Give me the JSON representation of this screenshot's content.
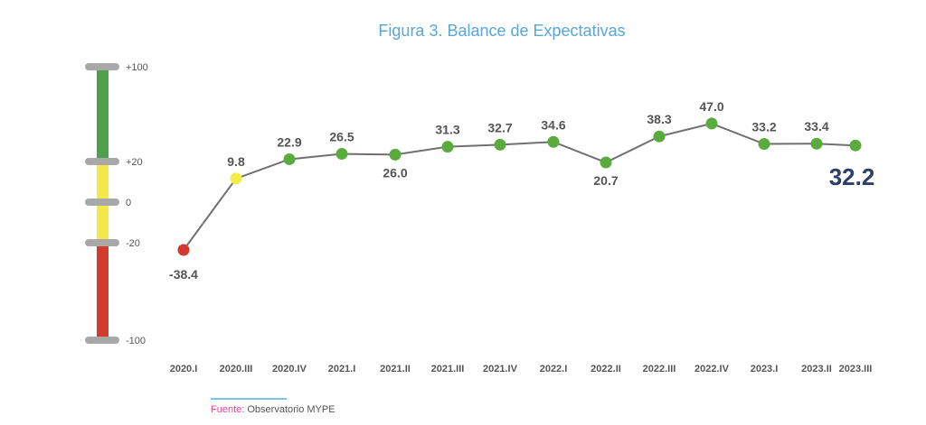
{
  "chart_data": {
    "type": "line",
    "title": "Figura 3. Balance de Expectativas",
    "xlabel": "",
    "ylabel": "",
    "categories": [
      "2020.I",
      "2020.III",
      "2020.IV",
      "2021.I",
      "2021.II",
      "2021.III",
      "2021.IV",
      "2022.I",
      "2022.II",
      "2022.III",
      "2022.IV",
      "2023.I",
      "2023.II",
      "2023.III"
    ],
    "values": [
      -38.4,
      9.8,
      22.9,
      26.5,
      26.0,
      31.3,
      32.7,
      34.6,
      20.7,
      38.3,
      47.0,
      33.2,
      33.4,
      32.2
    ],
    "labels": [
      "-38.4",
      "9.8",
      "22.9",
      "26.5",
      "26.0",
      "31.3",
      "32.7",
      "34.6",
      "20.7",
      "38.3",
      "47.0",
      "33.2",
      "33.4",
      "32.2"
    ],
    "label_side": [
      "below",
      "above",
      "above",
      "above",
      "below",
      "above",
      "above",
      "above",
      "below",
      "above",
      "above",
      "above",
      "above",
      "highlight"
    ],
    "point_colors": [
      "#d23a2e",
      "#f5ec4a",
      "#5aab3e",
      "#5aab3e",
      "#5aab3e",
      "#5aab3e",
      "#5aab3e",
      "#5aab3e",
      "#5aab3e",
      "#5aab3e",
      "#5aab3e",
      "#5aab3e",
      "#5aab3e",
      "#5aab3e"
    ],
    "line_color": "#707070",
    "highlight_color": "#2c3e6b",
    "scale": {
      "ticks": [
        "+100",
        "+20",
        "0",
        "-20",
        "-100"
      ],
      "bands": [
        {
          "from": 20,
          "to": 100,
          "color": "#4ea04f"
        },
        {
          "from": -20,
          "to": 20,
          "color": "#f3e84a"
        },
        {
          "from": -100,
          "to": -20,
          "color": "#d43a2e"
        }
      ]
    }
  },
  "source": {
    "label": "Fuente:",
    "text": " Observatorio MYPE"
  }
}
